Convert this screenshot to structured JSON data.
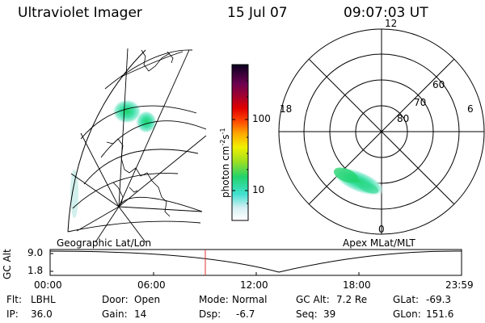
{
  "header": {
    "title": "Ultraviolet Imager",
    "date": "15 Jul 07",
    "time": "09:07:03 UT"
  },
  "colorbar": {
    "unit_main": "photon cm",
    "unit_exp1": "-2",
    "unit_s": "s",
    "unit_exp2": "-1",
    "ticks": [
      "100",
      "10"
    ]
  },
  "polar_plot": {
    "mlt_labels": {
      "top": "12",
      "bottom": "0",
      "left": "18",
      "right": "6"
    },
    "lat_labels": [
      "60",
      "70",
      "80"
    ]
  },
  "panels": {
    "left_caption": "Geographic Lat/Lon",
    "right_caption": "Apex MLat/MLT"
  },
  "altitude_plot": {
    "ylabel": "GC Alt",
    "yticks": [
      "9.0",
      "1.8"
    ],
    "xticks": [
      "00:00",
      "06:00",
      "12:00",
      "18:00",
      "23:59"
    ],
    "current_marker_time": "09:07:03"
  },
  "info": {
    "flt_label": "Flt:",
    "flt_value": "LBHL",
    "ip_label": "IP:",
    "ip_value": "36.0",
    "door_label": "Door:",
    "door_value": "Open",
    "gain_label": "Gain:",
    "gain_value": "14",
    "mode_label": "Mode:",
    "mode_value": "Normal",
    "dsp_label": "Dsp:",
    "dsp_value": "-6.7",
    "gcalt_label": "GC Alt:",
    "gcalt_value": "7.2 Re",
    "seq_label": "Seq:",
    "seq_value": "39",
    "glat_label": "GLat:",
    "glat_value": "-69.3",
    "glon_label": "GLon:",
    "glon_value": "151.6"
  }
}
